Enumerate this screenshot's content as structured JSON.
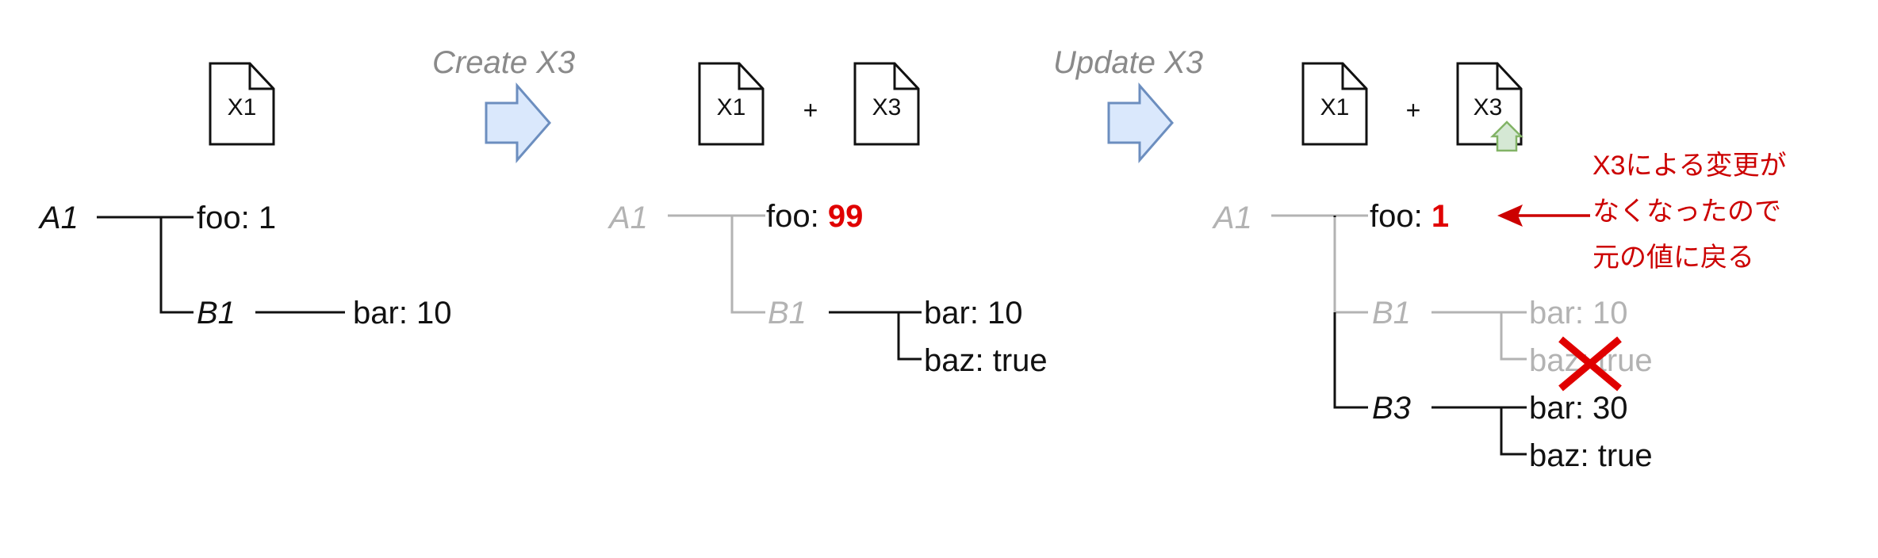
{
  "steps": {
    "create": "Create X3",
    "update": "Update X3"
  },
  "docs": {
    "x1": "X1",
    "x3": "X3",
    "plus": "+"
  },
  "panel1": {
    "a1": "A1",
    "foo": "foo: 1",
    "b1": "B1",
    "bar": "bar: 10"
  },
  "panel2": {
    "a1": "A1",
    "foo_key": "foo: ",
    "foo_val": "99",
    "b1": "B1",
    "bar": "bar: 10",
    "baz": "baz: true"
  },
  "panel3": {
    "a1": "A1",
    "foo_key": "foo: ",
    "foo_val": "1",
    "b1": "B1",
    "b1_bar": "bar: 10",
    "b1_baz": "baz: true",
    "b3": "B3",
    "b3_bar": "bar: 30",
    "b3_baz": "baz: true"
  },
  "annotation": {
    "line1": "X3による変更が",
    "line2": "なくなったので",
    "line3": "元の値に戻る"
  },
  "colors": {
    "arrow_fill": "#dae8fc",
    "arrow_stroke": "#6c8ebf",
    "highlight": "#e00000",
    "update_badge_fill": "#d5e8d4",
    "update_badge_stroke": "#82b366"
  }
}
